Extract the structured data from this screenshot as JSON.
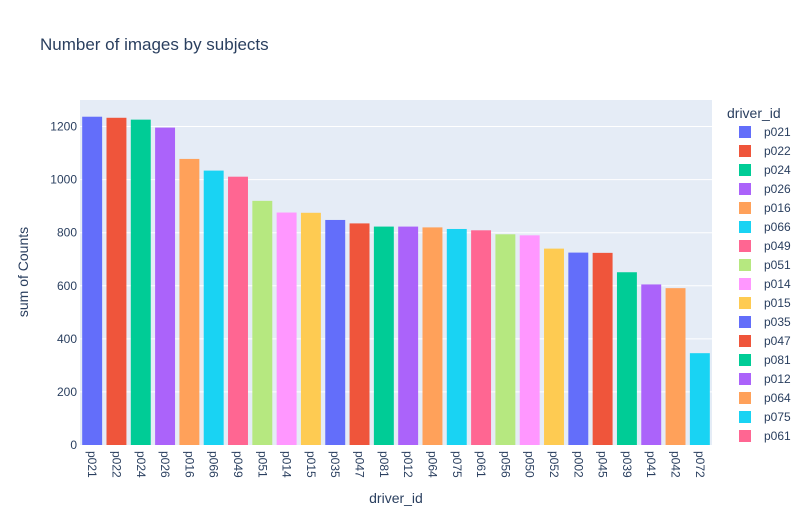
{
  "chart_data": {
    "type": "bar",
    "title": "Number of images by subjects",
    "xlabel": "driver_id",
    "ylabel": "sum of Counts",
    "ylim": [
      0,
      1300
    ],
    "yticks": [
      0,
      200,
      400,
      600,
      800,
      1000,
      1200
    ],
    "grid": true,
    "legend_title": "driver_id",
    "legend_position": "right",
    "colors": [
      "#636efa",
      "#EF553B",
      "#00cc96",
      "#ab63fa",
      "#FFA15A",
      "#19d3f3",
      "#FF6692",
      "#B6E880",
      "#FF97FF",
      "#FECB52"
    ],
    "categories": [
      "p021",
      "p022",
      "p024",
      "p026",
      "p016",
      "p066",
      "p049",
      "p051",
      "p014",
      "p015",
      "p035",
      "p047",
      "p081",
      "p012",
      "p064",
      "p075",
      "p061",
      "p056",
      "p050",
      "p052",
      "p002",
      "p045",
      "p039",
      "p041",
      "p042",
      "p072"
    ],
    "values": [
      1237,
      1233,
      1226,
      1196,
      1078,
      1034,
      1011,
      920,
      876,
      875,
      848,
      835,
      823,
      823,
      820,
      814,
      809,
      794,
      790,
      740,
      725,
      724,
      651,
      605,
      591,
      346
    ],
    "legend_entries": [
      "p021",
      "p022",
      "p024",
      "p026",
      "p016",
      "p066",
      "p049",
      "p051",
      "p014",
      "p015",
      "p035",
      "p047",
      "p081",
      "p012",
      "p064",
      "p075",
      "p061"
    ]
  }
}
